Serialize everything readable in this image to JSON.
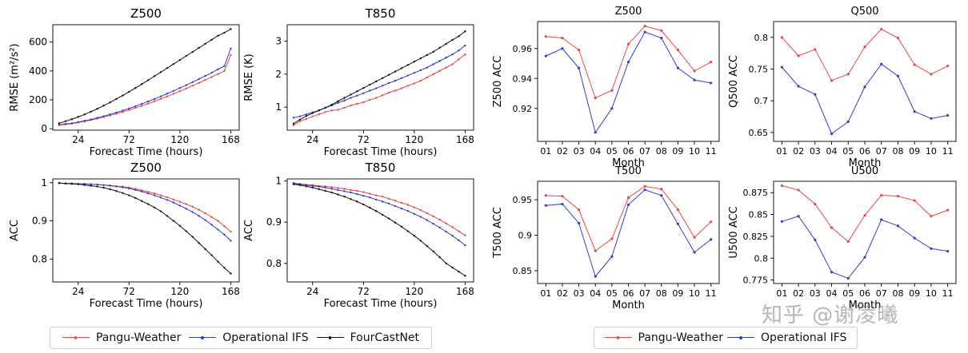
{
  "colors": {
    "pangu": "#e8474a",
    "ifs": "#3440c4",
    "fourcastnet": "#111111"
  },
  "legend_left": [
    {
      "key": "pangu",
      "label": "Pangu-Weather"
    },
    {
      "key": "ifs",
      "label": "Operational IFS"
    },
    {
      "key": "fourcastnet",
      "label": "FourCastNet"
    }
  ],
  "legend_right": [
    {
      "key": "pangu",
      "label": "Pangu-Weather"
    },
    {
      "key": "ifs",
      "label": "Operational IFS"
    }
  ],
  "watermark": "知乎 @谢凌曦",
  "chart_data": [
    {
      "id": "rmse-z500",
      "type": "line",
      "title": "Z500",
      "xlabel": "Forecast Time (hours)",
      "ylabel": "RMSE (m²/s²)",
      "xlim": [
        0,
        176
      ],
      "ylim": [
        -10,
        720
      ],
      "xticks": [
        24,
        72,
        120,
        168
      ],
      "yticks": [
        0,
        200,
        400,
        600
      ],
      "x": [
        6,
        12,
        18,
        24,
        30,
        36,
        42,
        48,
        54,
        60,
        66,
        72,
        78,
        84,
        90,
        96,
        102,
        108,
        114,
        120,
        126,
        132,
        138,
        144,
        150,
        156,
        162,
        168
      ],
      "series": [
        {
          "key": "pangu",
          "name": "Pangu-Weather",
          "values": [
            25,
            30,
            35,
            43,
            51,
            60,
            70,
            81,
            92,
            104,
            116,
            130,
            144,
            159,
            174,
            190,
            207,
            224,
            242,
            260,
            279,
            298,
            318,
            338,
            358,
            379,
            400,
            510
          ]
        },
        {
          "key": "ifs",
          "name": "Operational IFS",
          "values": [
            28,
            33,
            38,
            46,
            55,
            64,
            75,
            87,
            99,
            112,
            126,
            140,
            156,
            172,
            189,
            206,
            224,
            243,
            262,
            282,
            302,
            323,
            344,
            366,
            388,
            411,
            434,
            555
          ]
        },
        {
          "key": "fourcastnet",
          "name": "FourCastNet",
          "values": [
            38,
            52,
            66,
            82,
            99,
            118,
            138,
            160,
            182,
            206,
            230,
            256,
            282,
            309,
            336,
            364,
            392,
            420,
            448,
            476,
            504,
            532,
            560,
            588,
            616,
            644,
            665,
            690
          ]
        }
      ]
    },
    {
      "id": "rmse-t850",
      "type": "line",
      "title": "T850",
      "xlabel": "Forecast Time (hours)",
      "ylabel": "RMSE (K)",
      "xlim": [
        0,
        176
      ],
      "ylim": [
        0.3,
        3.5
      ],
      "xticks": [
        24,
        72,
        120,
        168
      ],
      "yticks": [
        1,
        2,
        3
      ],
      "x": [
        6,
        12,
        18,
        24,
        30,
        36,
        42,
        48,
        54,
        60,
        66,
        72,
        78,
        84,
        90,
        96,
        102,
        108,
        114,
        120,
        126,
        132,
        138,
        144,
        150,
        156,
        162,
        168
      ],
      "series": [
        {
          "key": "pangu",
          "name": "Pangu-Weather",
          "values": [
            0.45,
            0.57,
            0.64,
            0.72,
            0.78,
            0.85,
            0.9,
            0.92,
            0.98,
            1.05,
            1.1,
            1.15,
            1.22,
            1.28,
            1.36,
            1.44,
            1.5,
            1.57,
            1.65,
            1.72,
            1.8,
            1.9,
            2.0,
            2.1,
            2.2,
            2.3,
            2.45,
            2.6
          ]
        },
        {
          "key": "ifs",
          "name": "Operational IFS",
          "values": [
            0.68,
            0.72,
            0.78,
            0.84,
            0.9,
            0.98,
            1.05,
            1.13,
            1.2,
            1.28,
            1.35,
            1.42,
            1.5,
            1.57,
            1.65,
            1.73,
            1.8,
            1.88,
            1.96,
            2.04,
            2.12,
            2.2,
            2.3,
            2.4,
            2.5,
            2.6,
            2.72,
            2.87
          ]
        },
        {
          "key": "fourcastnet",
          "name": "FourCastNet",
          "values": [
            0.5,
            0.62,
            0.73,
            0.82,
            0.9,
            0.98,
            1.07,
            1.18,
            1.28,
            1.38,
            1.48,
            1.58,
            1.68,
            1.78,
            1.88,
            1.98,
            2.08,
            2.18,
            2.28,
            2.38,
            2.48,
            2.58,
            2.68,
            2.8,
            2.92,
            3.04,
            3.15,
            3.3
          ]
        }
      ]
    },
    {
      "id": "acc-z500",
      "type": "line",
      "title": "Z500",
      "xlabel": "Forecast Time (hours)",
      "ylabel": "ACC",
      "xlim": [
        0,
        176
      ],
      "ylim": [
        0.74,
        1.01
      ],
      "xticks": [
        24,
        72,
        120,
        168
      ],
      "yticks": [
        0.8,
        0.9,
        1.0
      ],
      "x": [
        6,
        12,
        18,
        24,
        30,
        36,
        42,
        48,
        54,
        60,
        66,
        72,
        78,
        84,
        90,
        96,
        102,
        108,
        114,
        120,
        126,
        132,
        138,
        144,
        150,
        156,
        162,
        168
      ],
      "series": [
        {
          "key": "pangu",
          "name": "Pangu-Weather",
          "values": [
            0.999,
            0.998,
            0.998,
            0.997,
            0.997,
            0.996,
            0.995,
            0.994,
            0.993,
            0.991,
            0.99,
            0.987,
            0.984,
            0.98,
            0.976,
            0.972,
            0.967,
            0.962,
            0.956,
            0.95,
            0.944,
            0.937,
            0.929,
            0.92,
            0.91,
            0.9,
            0.886,
            0.872
          ]
        },
        {
          "key": "ifs",
          "name": "Operational IFS",
          "values": [
            0.999,
            0.998,
            0.998,
            0.997,
            0.997,
            0.996,
            0.995,
            0.994,
            0.992,
            0.99,
            0.988,
            0.985,
            0.981,
            0.977,
            0.972,
            0.967,
            0.961,
            0.955,
            0.948,
            0.94,
            0.932,
            0.923,
            0.913,
            0.902,
            0.89,
            0.877,
            0.864,
            0.848
          ]
        },
        {
          "key": "fourcastnet",
          "name": "FourCastNet",
          "values": [
            0.999,
            0.998,
            0.997,
            0.996,
            0.994,
            0.992,
            0.99,
            0.987,
            0.983,
            0.978,
            0.973,
            0.967,
            0.96,
            0.952,
            0.944,
            0.935,
            0.925,
            0.913,
            0.9,
            0.887,
            0.873,
            0.858,
            0.842,
            0.826,
            0.81,
            0.793,
            0.777,
            0.762
          ]
        }
      ]
    },
    {
      "id": "acc-t850",
      "type": "line",
      "title": "T850",
      "xlabel": "Forecast Time (hours)",
      "ylabel": "ACC",
      "xlim": [
        0,
        176
      ],
      "ylim": [
        0.755,
        1.005
      ],
      "xticks": [
        24,
        72,
        120,
        168
      ],
      "yticks": [
        0.8,
        0.9,
        1.0
      ],
      "x": [
        6,
        12,
        18,
        24,
        30,
        36,
        42,
        48,
        54,
        60,
        66,
        72,
        78,
        84,
        90,
        96,
        102,
        108,
        114,
        120,
        126,
        132,
        138,
        144,
        150,
        156,
        162,
        168
      ],
      "series": [
        {
          "key": "pangu",
          "name": "Pangu-Weather",
          "values": [
            0.995,
            0.993,
            0.991,
            0.99,
            0.988,
            0.987,
            0.985,
            0.983,
            0.981,
            0.978,
            0.976,
            0.973,
            0.969,
            0.965,
            0.962,
            0.957,
            0.952,
            0.947,
            0.942,
            0.936,
            0.929,
            0.922,
            0.914,
            0.906,
            0.897,
            0.888,
            0.878,
            0.868
          ]
        },
        {
          "key": "ifs",
          "name": "Operational IFS",
          "values": [
            0.994,
            0.992,
            0.99,
            0.988,
            0.986,
            0.984,
            0.981,
            0.978,
            0.975,
            0.972,
            0.968,
            0.964,
            0.96,
            0.955,
            0.95,
            0.945,
            0.939,
            0.933,
            0.927,
            0.92,
            0.913,
            0.905,
            0.896,
            0.887,
            0.877,
            0.867,
            0.856,
            0.844
          ]
        },
        {
          "key": "fourcastnet",
          "name": "FourCastNet",
          "values": [
            0.992,
            0.99,
            0.987,
            0.984,
            0.98,
            0.976,
            0.972,
            0.967,
            0.962,
            0.956,
            0.95,
            0.943,
            0.935,
            0.927,
            0.918,
            0.909,
            0.899,
            0.889,
            0.878,
            0.867,
            0.855,
            0.842,
            0.829,
            0.815,
            0.8,
            0.79,
            0.78,
            0.77
          ]
        }
      ]
    },
    {
      "id": "month-z500",
      "type": "line",
      "title": "Z500",
      "xlabel": "Month",
      "ylabel": "Z500 ACC",
      "xlim": [
        0.5,
        11.5
      ],
      "ylim": [
        0.898,
        0.978
      ],
      "categories": [
        "01",
        "02",
        "03",
        "04",
        "05",
        "06",
        "07",
        "08",
        "09",
        "10",
        "11"
      ],
      "yticks": [
        0.92,
        0.94,
        0.96
      ],
      "series": [
        {
          "key": "pangu",
          "name": "Pangu-Weather",
          "values": [
            0.968,
            0.967,
            0.959,
            0.927,
            0.932,
            0.963,
            0.975,
            0.972,
            0.959,
            0.945,
            0.951
          ]
        },
        {
          "key": "ifs",
          "name": "Operational IFS",
          "values": [
            0.955,
            0.96,
            0.947,
            0.904,
            0.92,
            0.951,
            0.971,
            0.967,
            0.947,
            0.939,
            0.937
          ]
        }
      ]
    },
    {
      "id": "month-q500",
      "type": "line",
      "title": "Q500",
      "xlabel": "Month",
      "ylabel": "Q500 ACC",
      "xlim": [
        0.5,
        11.5
      ],
      "ylim": [
        0.636,
        0.825
      ],
      "categories": [
        "01",
        "02",
        "03",
        "04",
        "05",
        "06",
        "07",
        "08",
        "09",
        "10",
        "11"
      ],
      "yticks": [
        0.65,
        0.7,
        0.75,
        0.8
      ],
      "series": [
        {
          "key": "pangu",
          "name": "Pangu-Weather",
          "values": [
            0.8,
            0.771,
            0.781,
            0.732,
            0.742,
            0.785,
            0.813,
            0.799,
            0.757,
            0.742,
            0.755
          ]
        },
        {
          "key": "ifs",
          "name": "Operational IFS",
          "values": [
            0.753,
            0.723,
            0.71,
            0.648,
            0.667,
            0.722,
            0.758,
            0.739,
            0.683,
            0.672,
            0.677
          ]
        }
      ]
    },
    {
      "id": "month-t500",
      "type": "line",
      "title": "T500",
      "xlabel": "Month",
      "ylabel": "T500 ACC",
      "xlim": [
        0.5,
        11.5
      ],
      "ylim": [
        0.832,
        0.976
      ],
      "categories": [
        "01",
        "02",
        "03",
        "04",
        "05",
        "06",
        "07",
        "08",
        "09",
        "10",
        "11"
      ],
      "yticks": [
        0.85,
        0.9,
        0.95
      ],
      "series": [
        {
          "key": "pangu",
          "name": "Pangu-Weather",
          "values": [
            0.956,
            0.955,
            0.936,
            0.878,
            0.895,
            0.953,
            0.969,
            0.965,
            0.936,
            0.897,
            0.919
          ]
        },
        {
          "key": "ifs",
          "name": "Operational IFS",
          "values": [
            0.942,
            0.944,
            0.917,
            0.842,
            0.87,
            0.943,
            0.964,
            0.956,
            0.916,
            0.876,
            0.894
          ]
        }
      ]
    },
    {
      "id": "month-u500",
      "type": "line",
      "title": "U500",
      "xlabel": "Month",
      "ylabel": "U500 ACC",
      "xlim": [
        0.5,
        11.5
      ],
      "ylim": [
        0.771,
        0.888
      ],
      "categories": [
        "01",
        "02",
        "03",
        "04",
        "05",
        "06",
        "07",
        "08",
        "09",
        "10",
        "11"
      ],
      "yticks": [
        0.775,
        0.8,
        0.825,
        0.85,
        0.875
      ],
      "series": [
        {
          "key": "pangu",
          "name": "Pangu-Weather",
          "values": [
            0.883,
            0.878,
            0.862,
            0.835,
            0.819,
            0.849,
            0.872,
            0.871,
            0.866,
            0.848,
            0.855
          ]
        },
        {
          "key": "ifs",
          "name": "Operational IFS",
          "values": [
            0.842,
            0.848,
            0.821,
            0.784,
            0.777,
            0.801,
            0.844,
            0.837,
            0.823,
            0.811,
            0.808
          ]
        }
      ]
    }
  ]
}
